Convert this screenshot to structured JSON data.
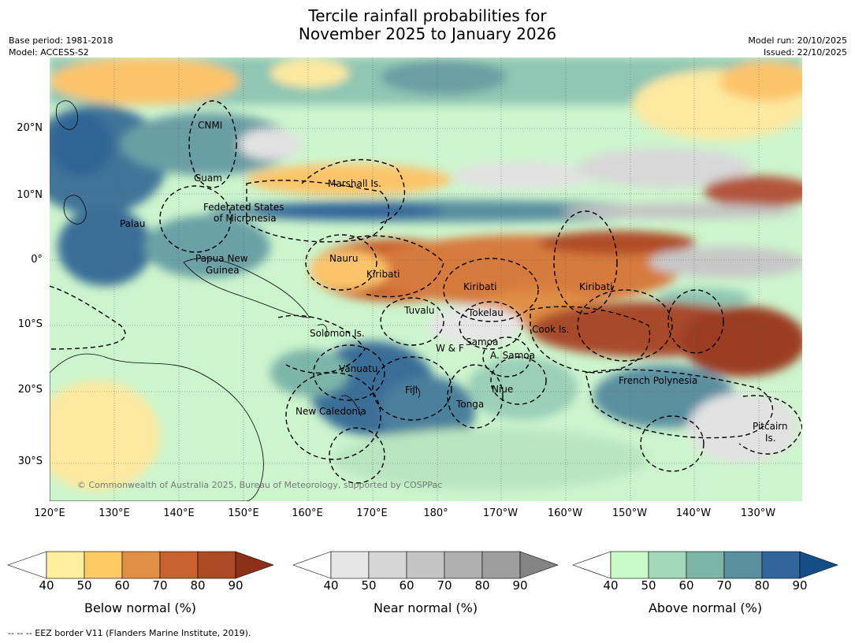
{
  "title": {
    "line1": "Tercile rainfall probabilities for",
    "line2": "November 2025 to January 2026"
  },
  "meta": {
    "base_period": "Base period: 1981-2018",
    "model": "Model: ACCESS-S2",
    "model_run": "Model run: 20/10/2025",
    "issued": "Issued: 22/10/2025"
  },
  "axes": {
    "lat_labels": [
      "20°N",
      "10°N",
      "0°",
      "10°S",
      "20°S",
      "30°S"
    ],
    "lon_labels": [
      "120°E",
      "130°E",
      "140°E",
      "150°E",
      "160°E",
      "170°E",
      "180°",
      "170°W",
      "160°W",
      "150°W",
      "140°W",
      "130°W"
    ]
  },
  "places": {
    "cnmi": "CNMI",
    "guam": "Guam",
    "marshall": "Marshall Is.",
    "fsm1": "Federated States",
    "fsm2": "of Micronesia",
    "palau": "Palau",
    "png1": "Papua New",
    "png2": "Guinea",
    "nauru": "Nauru",
    "kiribati_w": "Kiribati",
    "kiribati_c": "Kiribati",
    "kiribati_e": "Kiribati",
    "tuvalu": "Tuvalu",
    "tokelau": "Tokelau",
    "cook": "Cook Is.",
    "solomon": "Solomon Is.",
    "samoa": "Samoa",
    "wf": "W & F",
    "asamoa": "A. Samoa",
    "vanuatu": "Vanuatu",
    "fiji": "Fiji",
    "niue": "Niue",
    "tonga": "Tonga",
    "newcal": "New Caledonia",
    "frenchpoly": "French Polynesia",
    "pitcairn1": "Pitcairn",
    "pitcairn2": "Is."
  },
  "colorbars": [
    {
      "label": "Below normal (%)",
      "ticks": [
        "40",
        "50",
        "60",
        "70",
        "80",
        "90"
      ],
      "colors": [
        "#ffffff",
        "#fff0a0",
        "#fdca63",
        "#e08f45",
        "#c9622f",
        "#ad4a26",
        "#8c3018"
      ]
    },
    {
      "label": "Near normal (%)",
      "ticks": [
        "40",
        "50",
        "60",
        "70",
        "80",
        "90"
      ],
      "colors": [
        "#ffffff",
        "#e6e6e6",
        "#d6d6d6",
        "#c4c4c4",
        "#b0b0b0",
        "#9e9e9e",
        "#848484"
      ]
    },
    {
      "label": "Above normal (%)",
      "ticks": [
        "40",
        "50",
        "60",
        "70",
        "80",
        "90"
      ],
      "colors": [
        "#ffffff",
        "#c9fac9",
        "#a3d8b8",
        "#7db5a9",
        "#5a8fa0",
        "#32659a",
        "#154d87"
      ]
    }
  ],
  "copyright": "© Commonwealth of Australia 2025, Bureau of Meteorology, supported by COSPPac",
  "eez_note": "--  --  -- EEZ border V11 (Flanders Marine Institute, 2019)."
}
